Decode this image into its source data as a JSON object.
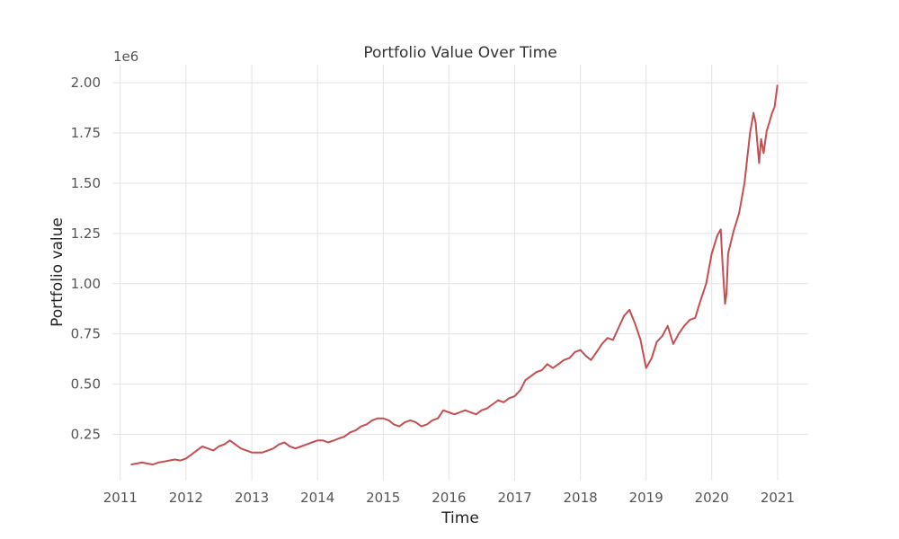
{
  "chart_data": {
    "type": "line",
    "title": "Portfolio Value Over Time",
    "xlabel": "Time",
    "ylabel": "Portfolio value",
    "y_offset_label": "1e6",
    "x_ticks": [
      "2011",
      "2012",
      "2013",
      "2014",
      "2015",
      "2016",
      "2017",
      "2018",
      "2019",
      "2020",
      "2021"
    ],
    "y_ticks": [
      "0.25",
      "0.50",
      "0.75",
      "1.00",
      "1.25",
      "1.50",
      "1.75",
      "2.00"
    ],
    "xlim": [
      "2010-11-18",
      "2021-06-20"
    ],
    "ylim": [
      0.02,
      2.09
    ],
    "grid": true,
    "line_color": "#c44e52",
    "series": [
      {
        "x": [
          "2011-03-01",
          "2011-04-01",
          "2011-05-01",
          "2011-06-01",
          "2011-07-01",
          "2011-08-01",
          "2011-09-01",
          "2011-10-01",
          "2011-11-01",
          "2011-12-01",
          "2012-01-01",
          "2012-02-01",
          "2012-03-01",
          "2012-04-01",
          "2012-05-01",
          "2012-06-01",
          "2012-07-01",
          "2012-08-01",
          "2012-09-01",
          "2012-10-01",
          "2012-11-01",
          "2012-12-01",
          "2013-01-01",
          "2013-02-01",
          "2013-03-01",
          "2013-04-01",
          "2013-05-01",
          "2013-06-01",
          "2013-07-01",
          "2013-08-01",
          "2013-09-01",
          "2013-10-01",
          "2013-11-01",
          "2013-12-01",
          "2014-01-01",
          "2014-02-01",
          "2014-03-01",
          "2014-04-01",
          "2014-05-01",
          "2014-06-01",
          "2014-07-01",
          "2014-08-01",
          "2014-09-01",
          "2014-10-01",
          "2014-11-01",
          "2014-12-01",
          "2015-01-01",
          "2015-02-01",
          "2015-03-01",
          "2015-04-01",
          "2015-05-01",
          "2015-06-01",
          "2015-07-01",
          "2015-08-01",
          "2015-09-01",
          "2015-10-01",
          "2015-11-01",
          "2015-12-01",
          "2016-01-01",
          "2016-02-01",
          "2016-03-01",
          "2016-04-01",
          "2016-05-01",
          "2016-06-01",
          "2016-07-01",
          "2016-08-01",
          "2016-09-01",
          "2016-10-01",
          "2016-11-01",
          "2016-12-01",
          "2017-01-01",
          "2017-02-01",
          "2017-03-01",
          "2017-04-01",
          "2017-05-01",
          "2017-06-01",
          "2017-07-01",
          "2017-08-01",
          "2017-09-01",
          "2017-10-01",
          "2017-11-01",
          "2017-12-01",
          "2018-01-01",
          "2018-02-01",
          "2018-03-01",
          "2018-04-01",
          "2018-05-01",
          "2018-06-01",
          "2018-07-01",
          "2018-08-01",
          "2018-09-01",
          "2018-10-01",
          "2018-11-01",
          "2018-12-01",
          "2019-01-01",
          "2019-02-01",
          "2019-03-01",
          "2019-04-01",
          "2019-05-01",
          "2019-06-01",
          "2019-07-01",
          "2019-08-01",
          "2019-09-01",
          "2019-10-01",
          "2019-11-01",
          "2019-12-01",
          "2020-01-01",
          "2020-02-01",
          "2020-02-20",
          "2020-03-01",
          "2020-03-15",
          "2020-03-23",
          "2020-04-01",
          "2020-05-01",
          "2020-06-01",
          "2020-07-01",
          "2020-08-01",
          "2020-08-20",
          "2020-09-01",
          "2020-09-10",
          "2020-09-20",
          "2020-10-01",
          "2020-10-15",
          "2020-11-01",
          "2020-11-15",
          "2020-12-01",
          "2020-12-15",
          "2020-12-31"
        ],
        "y": [
          0.1,
          0.105,
          0.11,
          0.105,
          0.1,
          0.11,
          0.115,
          0.12,
          0.125,
          0.12,
          0.13,
          0.15,
          0.17,
          0.19,
          0.18,
          0.17,
          0.19,
          0.2,
          0.22,
          0.2,
          0.18,
          0.17,
          0.16,
          0.16,
          0.16,
          0.17,
          0.18,
          0.2,
          0.21,
          0.19,
          0.18,
          0.19,
          0.2,
          0.21,
          0.22,
          0.22,
          0.21,
          0.22,
          0.23,
          0.24,
          0.26,
          0.27,
          0.29,
          0.3,
          0.32,
          0.33,
          0.33,
          0.32,
          0.3,
          0.29,
          0.31,
          0.32,
          0.31,
          0.29,
          0.3,
          0.32,
          0.33,
          0.37,
          0.36,
          0.35,
          0.36,
          0.37,
          0.36,
          0.35,
          0.37,
          0.38,
          0.4,
          0.42,
          0.41,
          0.43,
          0.44,
          0.47,
          0.52,
          0.54,
          0.56,
          0.57,
          0.6,
          0.58,
          0.6,
          0.62,
          0.63,
          0.66,
          0.67,
          0.64,
          0.62,
          0.66,
          0.7,
          0.73,
          0.72,
          0.78,
          0.84,
          0.87,
          0.8,
          0.72,
          0.58,
          0.63,
          0.71,
          0.74,
          0.79,
          0.7,
          0.75,
          0.79,
          0.82,
          0.83,
          0.92,
          1.0,
          1.15,
          1.24,
          1.27,
          1.1,
          0.9,
          0.95,
          1.15,
          1.26,
          1.35,
          1.5,
          1.75,
          1.85,
          1.8,
          1.7,
          1.6,
          1.72,
          1.65,
          1.76,
          1.8,
          1.85,
          1.88,
          1.99
        ]
      }
    ]
  }
}
